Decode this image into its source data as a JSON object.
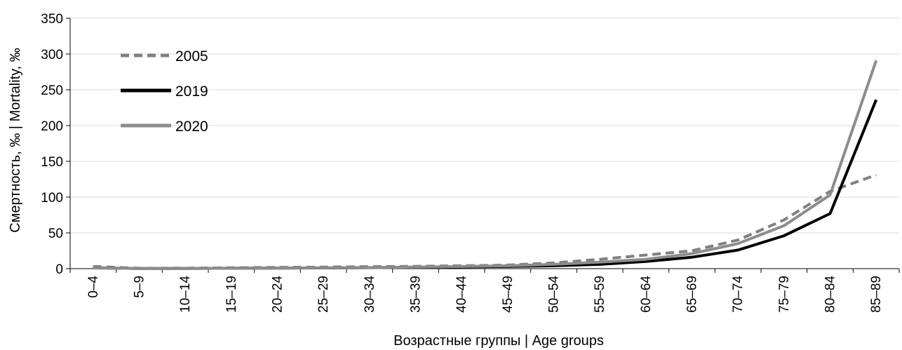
{
  "chart_data": {
    "type": "line",
    "xlabel": "Возрастные группы | Age groups",
    "ylabel": "Смертность, ‰ | Mortality, ‰",
    "ylim": [
      0,
      350
    ],
    "yticks": [
      0,
      50,
      100,
      150,
      200,
      250,
      300,
      350
    ],
    "grid": "horizontal",
    "legend_position": "top-left",
    "categories": [
      "0–4",
      "5–9",
      "10–14",
      "15–19",
      "20–24",
      "25–29",
      "30–34",
      "35–39",
      "40–44",
      "45–49",
      "50–54",
      "55–59",
      "60–64",
      "65–69",
      "70–74",
      "75–79",
      "80–84",
      "85–89"
    ],
    "series": [
      {
        "name": "2005",
        "style": "dashed",
        "color": "#808080",
        "values": [
          3,
          0.5,
          0.6,
          1.2,
          1.8,
          2.2,
          2.8,
          3.2,
          4,
          5,
          8,
          13,
          19,
          25,
          40,
          68,
          108,
          131
        ]
      },
      {
        "name": "2019",
        "style": "solid",
        "color": "#000000",
        "values": [
          1,
          0.3,
          0.3,
          0.6,
          0.8,
          1,
          1.4,
          2,
          2.5,
          3,
          4,
          6,
          10,
          16,
          26,
          46,
          77,
          236
        ]
      },
      {
        "name": "2020",
        "style": "solid",
        "color": "#8c8c8c",
        "values": [
          1,
          0.3,
          0.3,
          0.6,
          0.9,
          1.1,
          1.5,
          2.2,
          3,
          4,
          6,
          9,
          13,
          21,
          35,
          60,
          103,
          291
        ]
      }
    ]
  }
}
